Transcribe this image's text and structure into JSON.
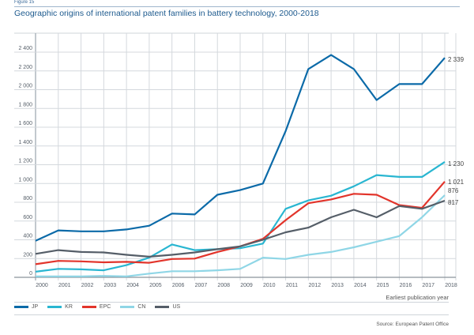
{
  "figure_label": "Figure 15",
  "chart_data": {
    "type": "line",
    "title": "Geographic origins of international patent families in battery technology, 2000-2018",
    "xlabel": "Earliest publication year",
    "ylabel": "",
    "x": [
      "2000",
      "2001",
      "2002",
      "2003",
      "2004",
      "2005",
      "2006",
      "2007",
      "2008",
      "2009",
      "2010",
      "2011",
      "2012",
      "2013",
      "2014",
      "2015",
      "2016",
      "2017",
      "2018"
    ],
    "ylim": [
      0,
      2400
    ],
    "yticks": [
      0,
      200,
      400,
      600,
      800,
      1000,
      1200,
      1400,
      1600,
      1800,
      2000,
      2200,
      2400
    ],
    "ytick_labels": [
      "0",
      "200",
      "400",
      "600",
      "800",
      "1 000",
      "1 200",
      "1 400",
      "1 600",
      "1 800",
      "2 000",
      "2 200",
      "2 400"
    ],
    "grid": true,
    "legend_position": "bottom-left",
    "series": [
      {
        "name": "JP",
        "color": "#0b6aa8",
        "values": [
          390,
          500,
          490,
          490,
          510,
          550,
          680,
          670,
          880,
          930,
          1000,
          1560,
          2220,
          2370,
          2220,
          1890,
          2060,
          2060,
          2339
        ],
        "end_label": "2 339"
      },
      {
        "name": "KR",
        "color": "#29b6d1",
        "values": [
          60,
          90,
          85,
          75,
          130,
          210,
          350,
          290,
          300,
          310,
          360,
          730,
          820,
          870,
          970,
          1090,
          1070,
          1070,
          1230
        ],
        "end_label": "1 230"
      },
      {
        "name": "EPC",
        "color": "#e2342b",
        "values": [
          140,
          175,
          170,
          160,
          165,
          155,
          195,
          200,
          270,
          330,
          410,
          610,
          790,
          830,
          890,
          880,
          770,
          740,
          1021
        ],
        "end_label": "1 021"
      },
      {
        "name": "CN",
        "color": "#8fd6e6",
        "values": [
          10,
          10,
          10,
          15,
          10,
          40,
          65,
          65,
          75,
          90,
          210,
          195,
          240,
          270,
          320,
          380,
          440,
          640,
          876
        ],
        "end_label": "876"
      },
      {
        "name": "US",
        "color": "#555e68",
        "values": [
          250,
          290,
          270,
          265,
          240,
          220,
          240,
          265,
          300,
          330,
          400,
          480,
          530,
          640,
          720,
          640,
          760,
          730,
          817
        ],
        "end_label": "817"
      }
    ]
  },
  "source": "Source: European Patent Office"
}
